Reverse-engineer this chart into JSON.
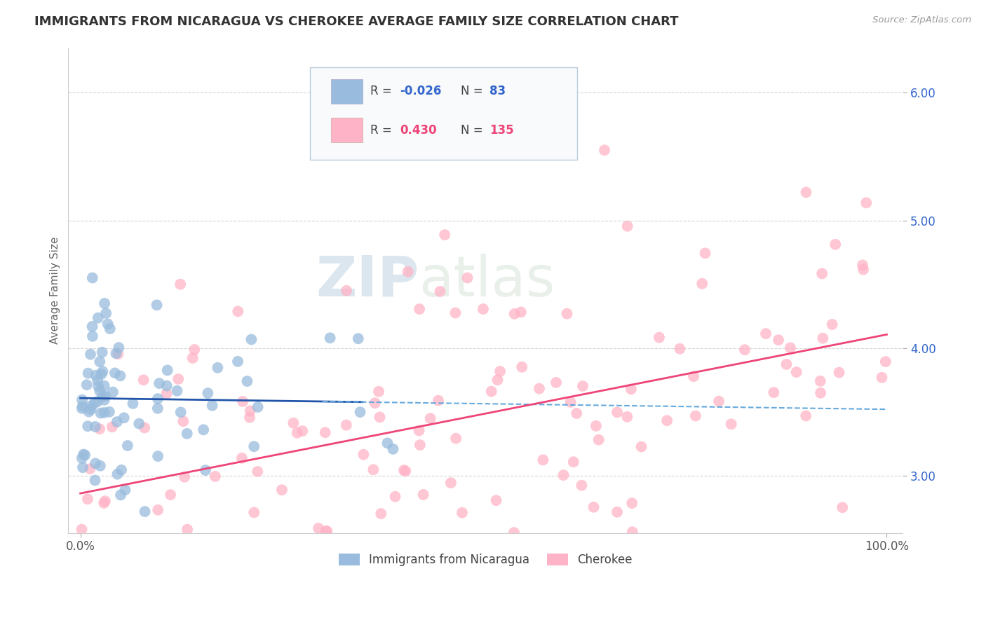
{
  "title": "IMMIGRANTS FROM NICARAGUA VS CHEROKEE AVERAGE FAMILY SIZE CORRELATION CHART",
  "source_text": "Source: ZipAtlas.com",
  "ylabel": "Average Family Size",
  "y_ticks": [
    3.0,
    4.0,
    5.0,
    6.0
  ],
  "ylim": [
    2.55,
    6.35
  ],
  "xlim": [
    -1.5,
    102.0
  ],
  "blue_color": "#99BBDD",
  "pink_color": "#FFB3C6",
  "blue_line_color": "#2255AA",
  "blue_dash_color": "#66AADD",
  "pink_line_color": "#EE4477",
  "watermark_color": "#D0DCE8",
  "background_color": "#FFFFFF",
  "grid_color": "#CCCCCC",
  "title_fontsize": 13,
  "label_fontsize": 11,
  "tick_fontsize": 12,
  "legend_fontsize": 12,
  "r1_color": "#3366CC",
  "r2_color": "#EE4477",
  "n_color": "#3366CC"
}
